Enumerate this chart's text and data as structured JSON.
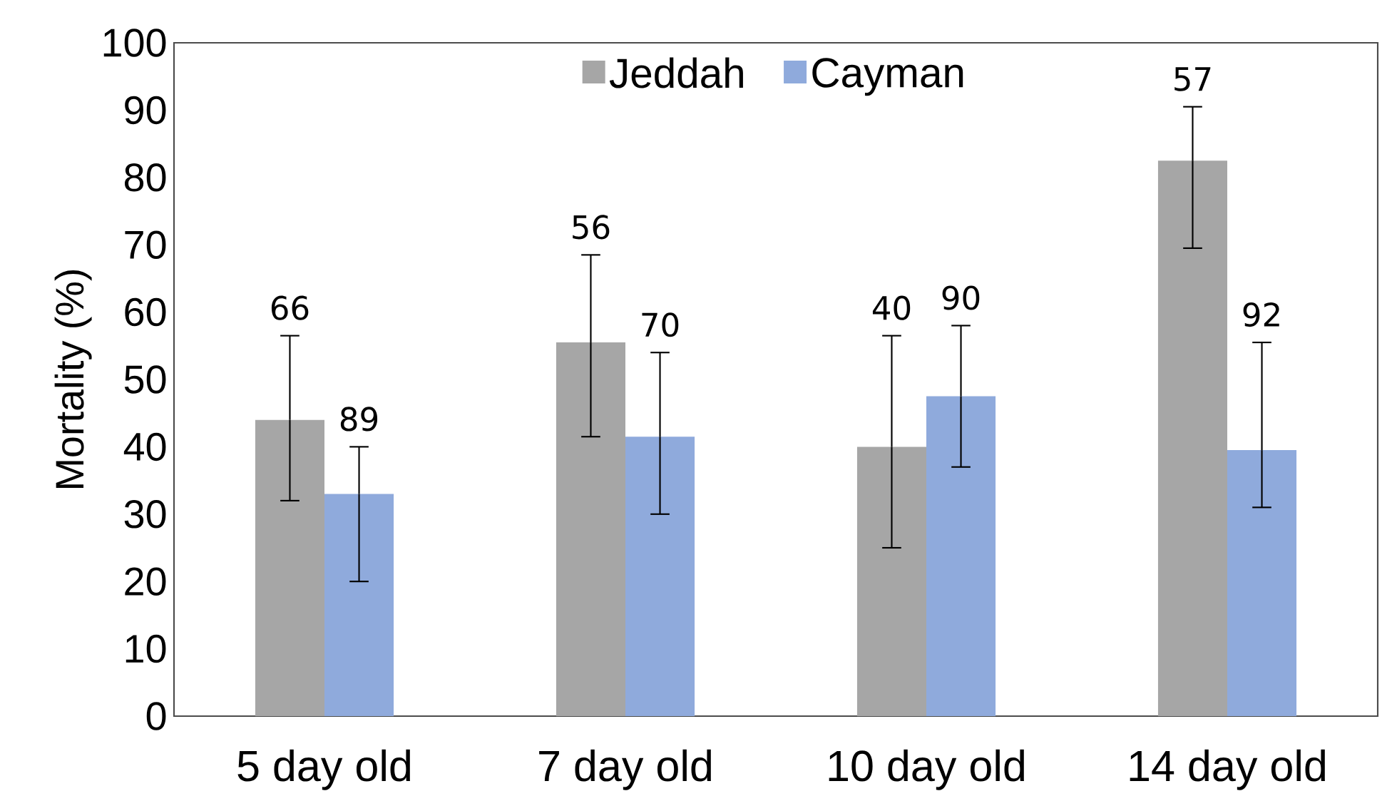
{
  "chart_data": {
    "type": "bar",
    "ylabel": "Mortality (%)",
    "categories": [
      "5 day old",
      "7 day old",
      "10 day old",
      "14 day old"
    ],
    "series": [
      {
        "name": "Jeddah",
        "color": "#a6a6a6",
        "values": [
          44,
          55.5,
          40,
          82.5
        ],
        "errors": [
          [
            32,
            56.5
          ],
          [
            41.5,
            68.5
          ],
          [
            25,
            56.5
          ],
          [
            69.5,
            90.5
          ]
        ]
      },
      {
        "name": "Cayman",
        "color": "#8faadc",
        "values": [
          33,
          41.5,
          47.5,
          39.5
        ],
        "errors": [
          [
            20,
            40
          ],
          [
            30,
            54
          ],
          [
            37,
            58
          ],
          [
            31,
            55.5
          ]
        ]
      }
    ],
    "annotations": [
      "66",
      "89",
      "56",
      "70",
      "40",
      "90",
      "57",
      "92"
    ],
    "ylim": [
      0,
      100
    ],
    "yticks": [
      0,
      10,
      20,
      30,
      40,
      50,
      60,
      70,
      80,
      90,
      100
    ],
    "legend": "top"
  }
}
